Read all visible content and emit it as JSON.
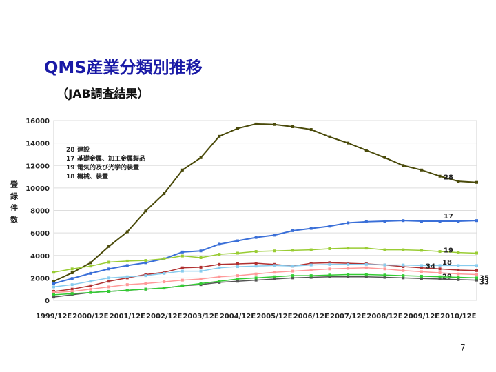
{
  "page_number": "7",
  "chart_data": {
    "type": "line",
    "title": "QMS産業分類別推移",
    "subtitle": "（JAB調査結果）",
    "y_label": "登録件数",
    "categories": [
      "1999/12E",
      null,
      "2000/12E",
      null,
      "2001/12E",
      null,
      "2002/12E",
      null,
      "2003/12E",
      null,
      "2004/12E",
      null,
      "2005/12E",
      null,
      "2006/12E",
      null,
      "2007/12E",
      null,
      "2008/12E",
      null,
      "2009/12E",
      null,
      "2010/12E",
      null
    ],
    "ylim": [
      0,
      16000
    ],
    "yticks": [
      0,
      2000,
      4000,
      6000,
      8000,
      10000,
      12000,
      14000,
      16000
    ],
    "grid": true,
    "series": [
      {
        "code": "28",
        "name": "建設",
        "color": "#4a4a0a",
        "values": [
          1700,
          2450,
          3350,
          4800,
          6100,
          7950,
          9500,
          11600,
          12700,
          14600,
          15300,
          15700,
          15650,
          15450,
          15200,
          14550,
          14000,
          13350,
          12700,
          12000,
          11600,
          11050,
          10600,
          10500
        ]
      },
      {
        "code": "17",
        "name": "基礎金属、加工金属製品",
        "color": "#3a6fd8",
        "values": [
          1500,
          1950,
          2400,
          2800,
          3100,
          3350,
          3700,
          4300,
          4400,
          5000,
          5300,
          5600,
          5800,
          6200,
          6400,
          6600,
          6900,
          7000,
          7050,
          7100,
          7050,
          7050,
          7050,
          7100
        ]
      },
      {
        "code": "19",
        "name": "電気的及び光学的装置",
        "color": "#99cc33",
        "values": [
          2500,
          2800,
          3050,
          3400,
          3500,
          3550,
          3700,
          3950,
          3800,
          4100,
          4200,
          4350,
          4400,
          4450,
          4500,
          4600,
          4650,
          4650,
          4500,
          4500,
          4450,
          4350,
          4250,
          4200
        ]
      },
      {
        "code": "18",
        "name": "機械、装置",
        "color": "#b03030",
        "values": [
          800,
          1000,
          1300,
          1700,
          2000,
          2300,
          2500,
          2900,
          2950,
          3200,
          3250,
          3300,
          3200,
          3050,
          3300,
          3350,
          3300,
          3250,
          3150,
          3000,
          2900,
          2800,
          2700,
          2650
        ]
      },
      {
        "code": "34",
        "color": "#88ccee",
        "values": [
          1200,
          1400,
          1700,
          2000,
          2100,
          2200,
          2400,
          2600,
          2600,
          2900,
          3000,
          3050,
          3100,
          3050,
          3150,
          3200,
          3200,
          3200,
          3150,
          3150,
          3100,
          3100,
          3100,
          3100
        ]
      },
      {
        "code": "29",
        "color": "#ff9999",
        "values": [
          700,
          800,
          1000,
          1200,
          1400,
          1500,
          1650,
          1800,
          1900,
          2100,
          2200,
          2350,
          2500,
          2600,
          2700,
          2800,
          2850,
          2900,
          2800,
          2650,
          2550,
          2450,
          2350,
          2300
        ]
      },
      {
        "code": "35",
        "color": "#555555",
        "values": [
          300,
          500,
          700,
          800,
          900,
          1000,
          1100,
          1300,
          1400,
          1600,
          1700,
          1800,
          1900,
          2000,
          2050,
          2100,
          2100,
          2100,
          2050,
          2000,
          1950,
          1900,
          1850,
          1800
        ]
      },
      {
        "code": "33",
        "color": "#33cc33",
        "values": [
          500,
          600,
          700,
          800,
          900,
          1000,
          1100,
          1300,
          1500,
          1700,
          1900,
          2000,
          2100,
          2200,
          2200,
          2250,
          2300,
          2300,
          2250,
          2200,
          2150,
          2100,
          2050,
          2000
        ]
      }
    ]
  }
}
